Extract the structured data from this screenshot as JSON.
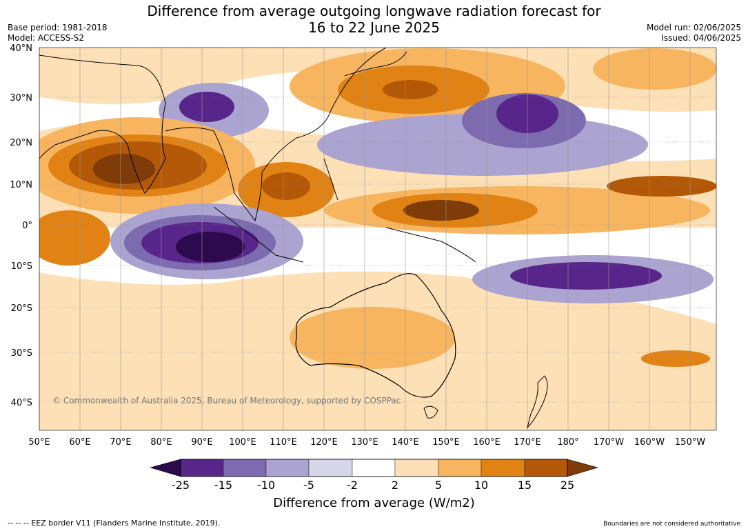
{
  "title_line1": "Difference from average outgoing longwave radiation forecast for",
  "title_line2": "16 to 22 June 2025",
  "base_period": "Base period: 1981-2018",
  "model": "Model: ACCESS-S2",
  "model_run": "Model run: 02/06/2025",
  "issued": "Issued: 04/06/2025",
  "copyright": "© Commonwealth of Australia 2025, Bureau of Meteorology, supported by COSPPac",
  "lat_labels": [
    "40°N",
    "30°N",
    "20°N",
    "10°N",
    "0°",
    "10°S",
    "20°S",
    "30°S",
    "40°S"
  ],
  "lon_labels": [
    "50°E",
    "60°E",
    "70°E",
    "80°E",
    "90°E",
    "100°E",
    "110°E",
    "120°E",
    "130°E",
    "140°E",
    "150°E",
    "160°E",
    "170°E",
    "180°",
    "170°W",
    "160°W",
    "150°W"
  ],
  "colorbar": {
    "ticks": [
      "-25",
      "-15",
      "-10",
      "-5",
      "-2",
      "2",
      "5",
      "10",
      "15",
      "25"
    ],
    "colors": [
      "#2d0a4e",
      "#58268a",
      "#7c6baf",
      "#aca4d0",
      "#d8d7ea",
      "#ffffff",
      "#fde0b6",
      "#f8b55f",
      "#e08214",
      "#b35806",
      "#7f3b08"
    ],
    "label": "Difference from average (W/m2)"
  },
  "eez_note": "--  --  -- EEZ border V11 (Flanders Marine Institute, 2019).",
  "boundary_note": "Boundaries are not considered authoritative"
}
